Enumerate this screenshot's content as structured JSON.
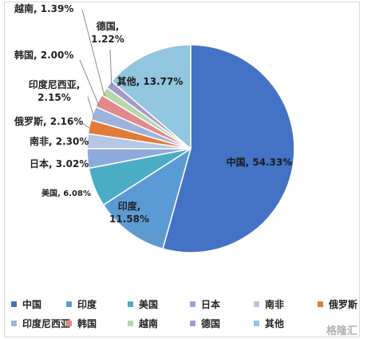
{
  "chart_data": {
    "type": "pie",
    "title": "",
    "slices": [
      {
        "name": "中国",
        "value": 54.33,
        "label": "中国, 54.33%",
        "color": "#4472C4"
      },
      {
        "name": "印度",
        "value": 11.58,
        "label": "印度, 11.58%",
        "color": "#5B9BD5"
      },
      {
        "name": "美国",
        "value": 6.08,
        "label": "美国, 6.08%",
        "color": "#4BACC6"
      },
      {
        "name": "日本",
        "value": 3.02,
        "label": "日本, 3.02%",
        "color": "#8EA9DB"
      },
      {
        "name": "南非",
        "value": 2.3,
        "label": "南非, 2.30%",
        "color": "#B4C7E7"
      },
      {
        "name": "俄罗斯",
        "value": 2.16,
        "label": "俄罗斯, 2.16%",
        "color": "#E07B39"
      },
      {
        "name": "印度尼西亚",
        "value": 2.15,
        "label": "印度尼西亚, 2.15%",
        "color": "#9DB3DE"
      },
      {
        "name": "韩国",
        "value": 2.0,
        "label": "韩国, 2.00%",
        "color": "#E08A8A"
      },
      {
        "name": "越南",
        "value": 1.39,
        "label": "越南, 1.39%",
        "color": "#B7D7A8"
      },
      {
        "name": "德国",
        "value": 1.22,
        "label": "德国, 1.22%",
        "color": "#A69ACB"
      },
      {
        "name": "其他",
        "value": 13.77,
        "label": "其他, 13.77%",
        "color": "#92C5DE"
      }
    ],
    "legend_position": "bottom"
  },
  "watermark": "格隆汇"
}
